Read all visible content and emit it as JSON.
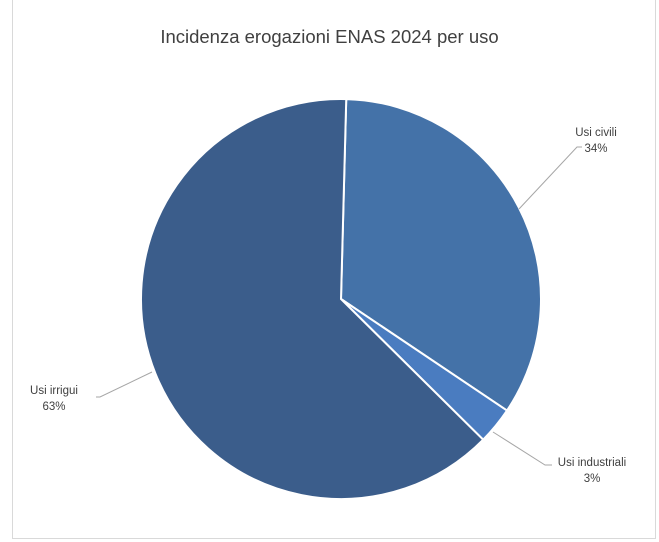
{
  "chart_data": {
    "type": "pie",
    "title": "Incidenza erogazioni ENAS 2024 per uso",
    "slices": [
      {
        "name": "Usi civili",
        "value": 34,
        "label_value": "34%",
        "color": "#4472a8"
      },
      {
        "name": "Usi industriali",
        "value": 3,
        "label_value": "3%",
        "color": "#4a7cc0"
      },
      {
        "name": "Usi irrigui",
        "value": 63,
        "label_value": "63%",
        "color": "#3b5d8b"
      }
    ],
    "legend": "none",
    "data_labels": "outside-with-leader-lines"
  }
}
